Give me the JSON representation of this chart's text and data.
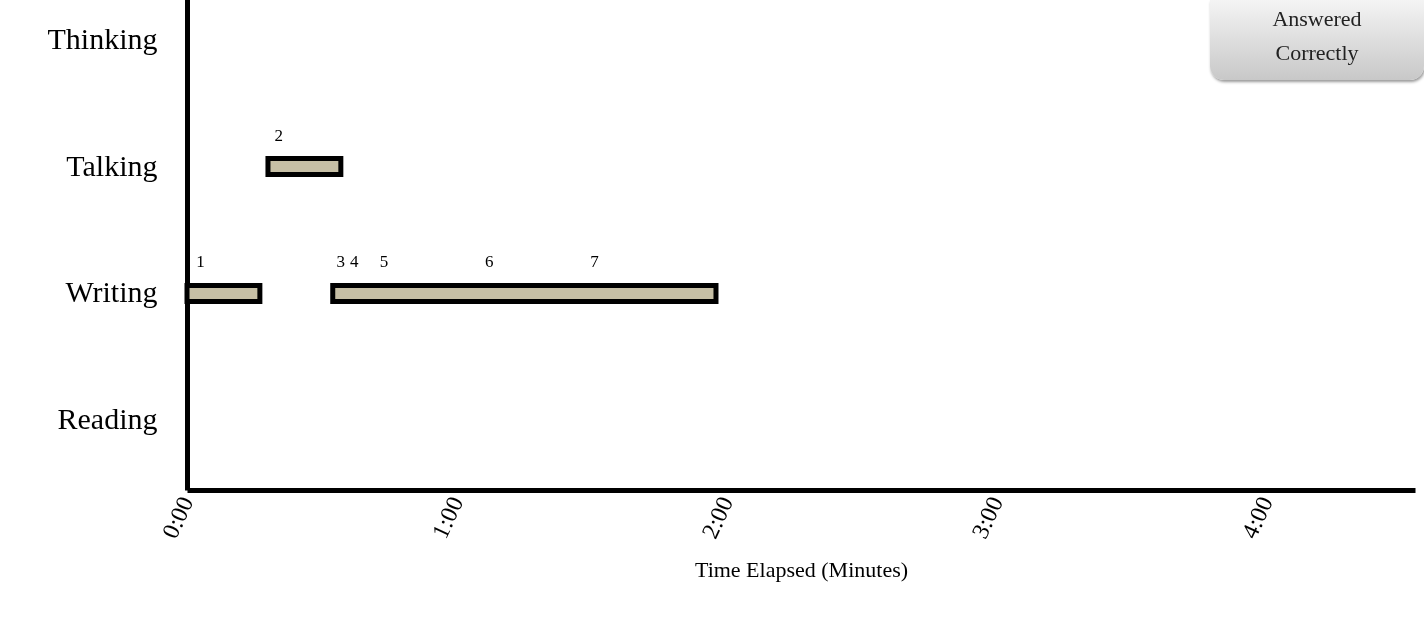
{
  "chart_data": {
    "type": "bar",
    "orientation": "horizontal",
    "categories": [
      "Thinking",
      "Talking",
      "Writing",
      "Reading"
    ],
    "series": [
      {
        "color": "#c6bfa5",
        "values": [
          null,
          null,
          0.27,
          null
        ],
        "base": [
          null,
          null,
          0,
          null
        ]
      },
      {
        "color": "#c6bfa5",
        "values": [
          null,
          0.27,
          1.42,
          null
        ],
        "base": [
          null,
          0.3,
          0.54,
          null
        ]
      }
    ],
    "xlabel": "Time Elapsed (Minutes)",
    "xlim": [
      0,
      4.55
    ],
    "xticks": [
      {
        "value": 0,
        "label": "0:00"
      },
      {
        "value": 1,
        "label": "1:00"
      },
      {
        "value": 2,
        "label": "2:00"
      },
      {
        "value": 3,
        "label": "3:00"
      },
      {
        "value": 4,
        "label": "4:00"
      }
    ],
    "grid": false,
    "annotations": [
      {
        "text": "1",
        "x": 0.05,
        "y": "Writing"
      },
      {
        "text": "2",
        "x": 0.34,
        "y": "Talking"
      },
      {
        "text": "3",
        "x": 0.57,
        "y": "Writing"
      },
      {
        "text": "4",
        "x": 0.62,
        "y": "Writing"
      },
      {
        "text": "5",
        "x": 0.73,
        "y": "Writing"
      },
      {
        "text": "6",
        "x": 1.12,
        "y": "Writing"
      },
      {
        "text": "7",
        "x": 1.51,
        "y": "Writing"
      },
      "Answered Correctly"
    ]
  }
}
